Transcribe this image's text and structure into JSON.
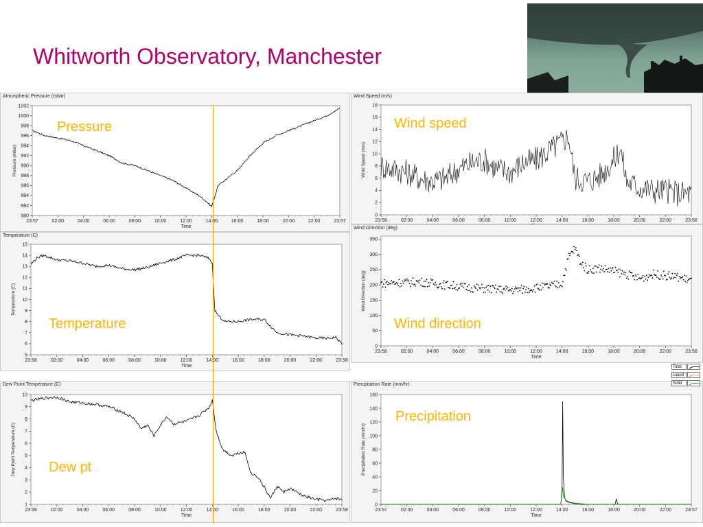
{
  "slide": {
    "title": "Whitworth Observatory, Manchester",
    "photo_description": "tornado-photo",
    "cursor_color": "#f0a000",
    "accent_color": "#b0006a",
    "label_color": "#ffb400"
  },
  "chart_data": [
    {
      "id": "pressure",
      "type": "line",
      "panel_title": "Atmospheric Pressure (mbar)",
      "big_label": "Pressure",
      "ylabel": "Pressure (mbar)",
      "xlabel": "Time",
      "ylim": [
        980,
        1002
      ],
      "yticks": [
        980,
        982,
        984,
        986,
        988,
        990,
        992,
        994,
        996,
        998,
        1000,
        1002
      ],
      "xticks": [
        "23:57",
        "02:00",
        "04:00",
        "06:00",
        "08:00",
        "10:00",
        "12:00",
        "14:00",
        "16:00",
        "18:00",
        "20:00",
        "22:00",
        "23:57"
      ],
      "grid": false,
      "series": [
        {
          "x": [
            0,
            1,
            2,
            3,
            4,
            5,
            6,
            7,
            8,
            9,
            10,
            11,
            12,
            13,
            13.5,
            14,
            14.5,
            15,
            16,
            17,
            18,
            19,
            20,
            21,
            22,
            23,
            24
          ],
          "y": [
            997,
            996,
            995.5,
            995,
            994,
            993,
            992,
            990.5,
            990,
            989,
            988,
            987,
            985.5,
            984,
            983,
            981.8,
            986,
            987,
            989,
            992,
            994.5,
            996,
            997,
            998,
            999,
            1000,
            1001.5
          ]
        }
      ]
    },
    {
      "id": "wind_speed",
      "type": "line",
      "panel_title": "Wind Speed (m/s)",
      "big_label": "Wind speed",
      "ylabel": "Wind Speed (m/s)",
      "xlabel": "Time",
      "ylim": [
        0,
        18
      ],
      "yticks": [
        0,
        2,
        4,
        6,
        8,
        10,
        12,
        14,
        16,
        18
      ],
      "xticks": [
        "23:58",
        "02:00",
        "04:00",
        "06:00",
        "08:00",
        "10:00",
        "12:00",
        "14:00",
        "16:00",
        "18:00",
        "20:00",
        "22:00",
        "23:58"
      ],
      "grid": false,
      "series": [
        {
          "x": [
            0,
            1,
            2,
            3,
            4,
            5,
            6,
            7,
            8,
            9,
            10,
            11,
            12,
            13,
            14,
            14.5,
            15,
            16,
            17,
            18,
            18.5,
            19,
            20,
            21,
            22,
            23,
            24
          ],
          "y": [
            8,
            7.5,
            7,
            6,
            5.5,
            6,
            7.5,
            8.5,
            9,
            7.5,
            7,
            8.5,
            9,
            10.5,
            12,
            13,
            6,
            5.5,
            6.5,
            9,
            11,
            5.5,
            4.5,
            4,
            4,
            3.5,
            3.5
          ]
        }
      ]
    },
    {
      "id": "temperature",
      "type": "line",
      "panel_title": "Temperature (C)",
      "big_label": "Temperature",
      "ylabel": "Temperature (C)",
      "xlabel": "Time",
      "ylim": [
        5,
        15
      ],
      "yticks": [
        5,
        6,
        7,
        8,
        9,
        10,
        11,
        12,
        13,
        14,
        15
      ],
      "xticks": [
        "23:58",
        "02:00",
        "04:00",
        "06:00",
        "08:00",
        "10:00",
        "12:00",
        "14:00",
        "16:00",
        "18:00",
        "20:00",
        "22:00",
        "23:58"
      ],
      "grid": false,
      "series": [
        {
          "x": [
            0,
            0.5,
            1,
            2,
            3,
            4,
            5,
            6,
            7,
            8,
            9,
            10,
            11,
            12,
            13,
            13.8,
            14,
            14.2,
            14.5,
            15,
            16,
            17,
            18,
            19,
            20,
            21,
            22,
            23,
            23.5,
            24
          ],
          "y": [
            13.2,
            13.8,
            14,
            13.6,
            13.5,
            13.3,
            13,
            13.1,
            12.8,
            12.7,
            12.9,
            13.3,
            13.6,
            14,
            14,
            13.7,
            13.2,
            9,
            8.5,
            8,
            8,
            8.2,
            8.2,
            7,
            6.8,
            6.7,
            6.5,
            6.5,
            6.6,
            6
          ]
        }
      ]
    },
    {
      "id": "wind_direction",
      "type": "scatter",
      "panel_title": "Wind Direction (deg)",
      "big_label": "Wind direction",
      "ylabel": "Wind Direction (deg)",
      "xlabel": "Time",
      "ylim": [
        0,
        360
      ],
      "yticks": [
        0,
        50,
        100,
        150,
        200,
        250,
        300,
        350
      ],
      "xticks": [
        "23:58",
        "02:00",
        "04:00",
        "06:00",
        "08:00",
        "10:00",
        "12:00",
        "14:00",
        "16:00",
        "18:00",
        "20:00",
        "22:00",
        "23:58"
      ],
      "grid": false,
      "series": [
        {
          "x": [
            0,
            1,
            2,
            3,
            4,
            5,
            6,
            7,
            8,
            9,
            10,
            11,
            12,
            13,
            14,
            14.5,
            15,
            15.5,
            16,
            17,
            18,
            19,
            20,
            21,
            22,
            23,
            24
          ],
          "y": [
            205,
            207,
            208,
            210,
            205,
            200,
            195,
            190,
            188,
            185,
            183,
            185,
            190,
            195,
            205,
            290,
            320,
            270,
            250,
            255,
            245,
            235,
            220,
            235,
            230,
            225,
            215
          ]
        }
      ]
    },
    {
      "id": "dew_point",
      "type": "line",
      "panel_title": "Dew Point Temperature (C)",
      "big_label": "Dew pt",
      "ylabel": "Dew Point Temperature (C)",
      "xlabel": "Time",
      "ylim": [
        1,
        10
      ],
      "yticks": [
        1,
        2,
        3,
        4,
        5,
        6,
        7,
        8,
        9,
        10
      ],
      "xticks": [
        "23:58",
        "02:00",
        "04:00",
        "06:00",
        "08:00",
        "10:00",
        "12:00",
        "14:00",
        "16:00",
        "18:00",
        "20:00",
        "22:00",
        "23:58"
      ],
      "grid": false,
      "series": [
        {
          "x": [
            0,
            1,
            2,
            3,
            4,
            5,
            6,
            7,
            8,
            8.5,
            9,
            9.5,
            10,
            10.5,
            11,
            11.5,
            12,
            13,
            13.8,
            14,
            14.3,
            14.8,
            15.5,
            16,
            16.5,
            17,
            17.5,
            18,
            18.5,
            19,
            19.5,
            20,
            21,
            22,
            23,
            23.5,
            24
          ],
          "y": [
            9.5,
            9.7,
            9.8,
            9.4,
            9.3,
            9.2,
            9,
            8.6,
            8,
            7.2,
            7.5,
            6.6,
            7.5,
            8.2,
            7.6,
            7.7,
            7.8,
            8.3,
            9,
            9.6,
            7,
            5.5,
            5,
            5.2,
            5.3,
            3.5,
            3.3,
            2.4,
            1.5,
            2.5,
            2.0,
            2.3,
            1.7,
            1.4,
            1.3,
            1.5,
            1.4
          ]
        }
      ]
    },
    {
      "id": "precipitation",
      "type": "line",
      "panel_title": "Precipitation Rate (mm/hr)",
      "big_label": "Precipitation",
      "ylabel": "Precipitation Rate (mm/hr)",
      "xlabel": "Time",
      "ylim": [
        0,
        160
      ],
      "yticks": [
        0,
        20,
        40,
        60,
        80,
        100,
        120,
        140,
        160
      ],
      "xticks": [
        "23:57",
        "02:00",
        "04:00",
        "06:00",
        "08:00",
        "10:00",
        "12:00",
        "14:00",
        "16:00",
        "18:00",
        "20:00",
        "22:00",
        "23:57"
      ],
      "grid": false,
      "legend": [
        "Total",
        "Liquid",
        "Solid"
      ],
      "legend_position": "top-right",
      "series": [
        {
          "name": "Total",
          "color": "#000000",
          "x": [
            0,
            13.9,
            14.0,
            14.05,
            14.1,
            14.2,
            14.3,
            14.5,
            15,
            15.5,
            16,
            18.1,
            18.2,
            18.3,
            24
          ],
          "y": [
            0,
            0,
            20,
            150,
            40,
            10,
            5,
            3,
            1,
            0,
            0,
            0,
            8,
            0,
            0
          ]
        },
        {
          "name": "Liquid",
          "color": "#00a000",
          "x": [
            0,
            13.9,
            14.0,
            14.05,
            14.1,
            14.3,
            14.6,
            15,
            15.5,
            16,
            24
          ],
          "y": [
            0,
            0,
            15,
            25,
            12,
            6,
            3,
            2,
            1,
            0,
            0
          ]
        }
      ]
    }
  ]
}
